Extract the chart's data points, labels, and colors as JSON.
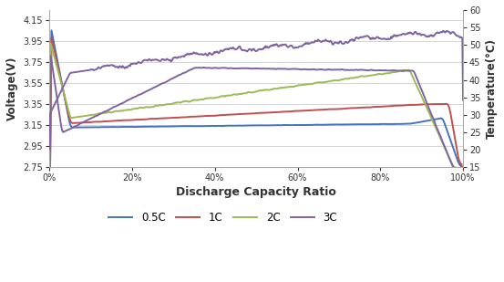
{
  "xlabel": "Discharge Capacity Ratio",
  "ylabel_left": "Voltage(V)",
  "ylabel_right": "Temperature(°C)",
  "xlim": [
    0,
    1
  ],
  "ylim_left": [
    2.75,
    4.25
  ],
  "ylim_right": [
    15,
    60
  ],
  "xticks": [
    0,
    0.2,
    0.4,
    0.6,
    0.8,
    1.0
  ],
  "yticks_left": [
    2.75,
    2.95,
    3.15,
    3.35,
    3.55,
    3.75,
    3.95,
    4.15
  ],
  "yticks_right": [
    15,
    20,
    25,
    30,
    35,
    40,
    45,
    50,
    55,
    60
  ],
  "colors": {
    "0.5C": "#4472C4",
    "1C": "#C0504D",
    "2C": "#9BBB59",
    "3C": "#8064A2"
  },
  "grid_color": "#D0D0D0",
  "linewidth": 1.4
}
